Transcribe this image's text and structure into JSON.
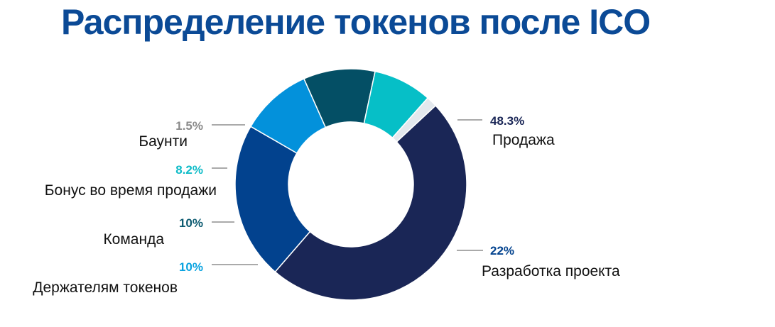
{
  "title": "Распределение токенов после ICO",
  "chart_data": {
    "type": "pie",
    "variant": "donut",
    "title": "Распределение токенов после ICO",
    "start_angle_deg": -43,
    "direction": "clockwise",
    "slices": [
      {
        "label": "Продажа",
        "value": 48.3,
        "value_label": "48.3%",
        "color": "#1a2656",
        "pct_color": "#1a2656",
        "side": "right"
      },
      {
        "label": "Разработка проекта",
        "value": 22,
        "value_label": "22%",
        "color": "#02428e",
        "pct_color": "#02428e",
        "side": "right"
      },
      {
        "label": "Держателям токенов",
        "value": 10,
        "value_label": "10%",
        "color": "#0391db",
        "pct_color": "#0aa3e0",
        "side": "left"
      },
      {
        "label": "Команда",
        "value": 10,
        "value_label": "10%",
        "color": "#044f65",
        "pct_color": "#0c5a70",
        "side": "left"
      },
      {
        "label": "Бонус во время продажи",
        "value": 8.2,
        "value_label": "8.2%",
        "color": "#06bfc7",
        "pct_color": "#10bcc8",
        "side": "left"
      },
      {
        "label": "Баунти",
        "value": 1.5,
        "value_label": "1.5%",
        "color": "#e3e8ed",
        "pct_color": "#8a8a8a",
        "side": "left"
      }
    ]
  }
}
